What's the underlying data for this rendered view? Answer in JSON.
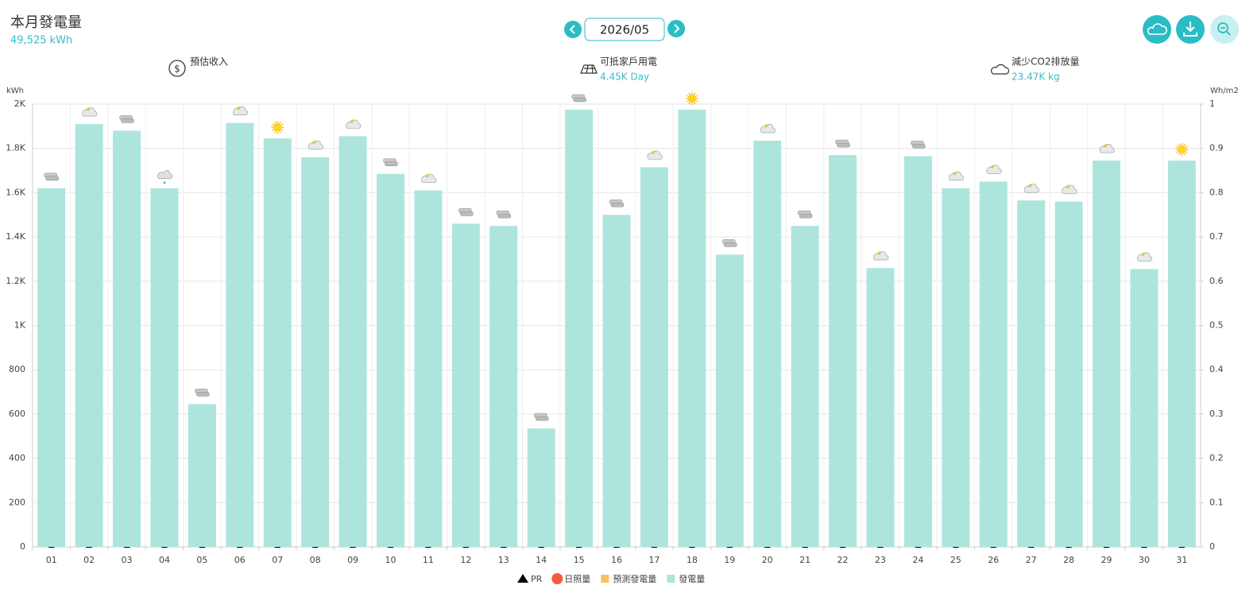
{
  "header": {
    "title": "本月發電量",
    "total": "49,525 kWh",
    "month": "2026/05"
  },
  "stats": [
    {
      "label": "預估收入"
    },
    {
      "label": "可抵家戶用電",
      "value": "4.45K Day"
    },
    {
      "label": "減少CO2排放量",
      "value": "23.47K kg"
    }
  ],
  "chart_data": {
    "type": "bar",
    "ylabel": "kWh",
    "y2label": "Wh/m2",
    "categories": [
      "01",
      "02",
      "03",
      "04",
      "05",
      "06",
      "07",
      "08",
      "09",
      "10",
      "11",
      "12",
      "13",
      "14",
      "15",
      "16",
      "17",
      "18",
      "19",
      "20",
      "21",
      "22",
      "23",
      "24",
      "25",
      "26",
      "27",
      "28",
      "29",
      "30",
      "31"
    ],
    "ylim": [
      0,
      2000
    ],
    "yticks": [
      0,
      200,
      400,
      600,
      800,
      {
        "value": 1000,
        "label": "1K"
      },
      {
        "value": 1200,
        "label": "1.2K"
      },
      {
        "value": 1400,
        "label": "1.4K"
      },
      {
        "value": 1600,
        "label": "1.6K"
      },
      {
        "value": 1800,
        "label": "1.8K"
      },
      {
        "value": 2000,
        "label": "2K"
      }
    ],
    "y2lim": [
      0,
      1
    ],
    "y2ticks": [
      0,
      0.1,
      0.2,
      0.3,
      0.4,
      0.5,
      0.6,
      0.7,
      0.8,
      0.9,
      1
    ],
    "grid": true,
    "weather": [
      "cloudy",
      "partly",
      "cloudy",
      "rain",
      "cloudy",
      "partly",
      "sunny",
      "partly",
      "partly",
      "cloudy",
      "partly",
      "cloudy",
      "cloudy",
      "cloudy",
      "cloudy",
      "cloudy",
      "partly",
      "sunny",
      "cloudy",
      "partly",
      "cloudy",
      "cloudy",
      "partly",
      "cloudy",
      "partly",
      "partly",
      "partly",
      "partly",
      "partly",
      "partly",
      "sunny"
    ],
    "series": [
      {
        "name": "PR",
        "color": "#000000",
        "marker": "triangle",
        "axis": "y2",
        "values": [
          0,
          0,
          0,
          0,
          0,
          0,
          0,
          0,
          0,
          0,
          0,
          0,
          0,
          0,
          0,
          0,
          0,
          0,
          0,
          0,
          0,
          0,
          0,
          0,
          0,
          0,
          0,
          0,
          0,
          0,
          0
        ]
      },
      {
        "name": "日照量",
        "color": "#f25c3c",
        "marker": "circle",
        "axis": "y2",
        "values": [
          null,
          null,
          null,
          null,
          null,
          null,
          null,
          null,
          null,
          null,
          null,
          null,
          null,
          null,
          null,
          null,
          null,
          null,
          null,
          null,
          null,
          null,
          null,
          null,
          null,
          null,
          null,
          null,
          null,
          null,
          null
        ]
      },
      {
        "name": "預測發電量",
        "color": "#f6c25e",
        "marker": "square",
        "values": [
          null,
          null,
          null,
          null,
          null,
          null,
          null,
          null,
          null,
          null,
          null,
          null,
          null,
          null,
          null,
          null,
          null,
          null,
          null,
          null,
          null,
          null,
          null,
          null,
          null,
          null,
          null,
          null,
          null,
          null,
          null
        ]
      },
      {
        "name": "發電量",
        "color": "#ade5dd",
        "marker": "square",
        "values": [
          1620,
          1910,
          1880,
          1620,
          645,
          1915,
          1845,
          1760,
          1855,
          1685,
          1610,
          1460,
          1450,
          535,
          1975,
          1500,
          1715,
          1975,
          1320,
          1835,
          1450,
          1770,
          1260,
          1765,
          1620,
          1650,
          1565,
          1560,
          1745,
          1255,
          1745
        ]
      }
    ]
  }
}
